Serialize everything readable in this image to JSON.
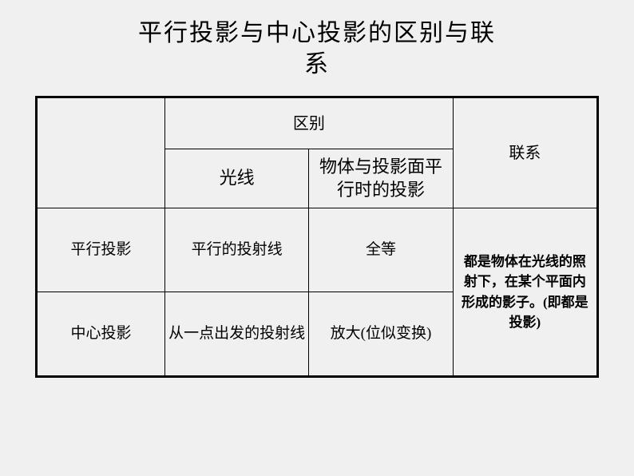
{
  "title_line1": "平行投影与中心投影的区别与联",
  "title_line2": "系",
  "table": {
    "header_difference": "区别",
    "header_connection": "联系",
    "subheader_light": "光线",
    "subheader_projection": "物体与投影面平行时的投影",
    "row1_label": "平行投影",
    "row1_light": "平行的投射线",
    "row1_proj": "全等",
    "row2_label": "中心投影",
    "row2_light": "从一点出发的投射线",
    "row2_proj": "放大(位似变换)",
    "connection_text": "都是物体在光线的照射下，在某个平面内形成的影子。(即都是投影)"
  },
  "colors": {
    "background": "#f0f0f0",
    "border": "#000000",
    "text": "#000000"
  },
  "fontsize": {
    "title": 30,
    "header": 20,
    "cell": 19,
    "connection": 17
  }
}
